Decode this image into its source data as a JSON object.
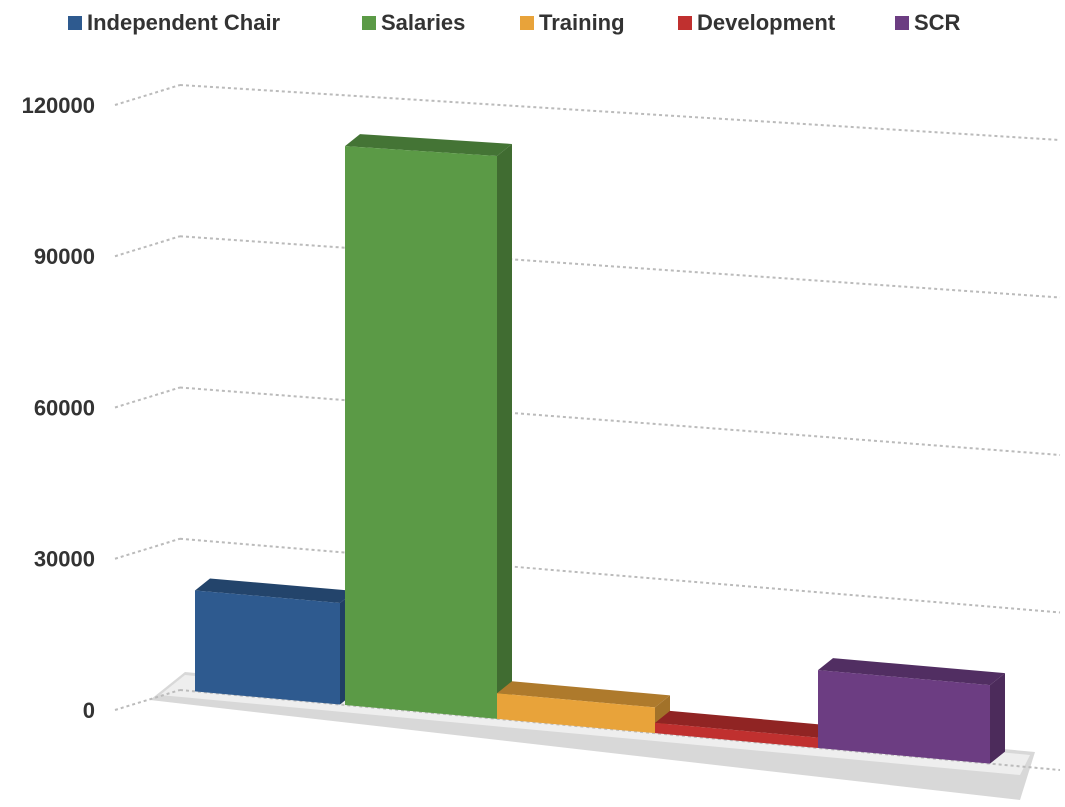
{
  "chart_data": {
    "type": "bar3d",
    "series": [
      {
        "name": "Independent Chair",
        "color": "#2e5a8f",
        "values": [
          20000
        ]
      },
      {
        "name": "Salaries",
        "color": "#5b9a46",
        "values": [
          110000
        ]
      },
      {
        "name": "Training",
        "color": "#e8a33a",
        "values": [
          5000
        ]
      },
      {
        "name": "Development",
        "color": "#c0302f",
        "values": [
          2000
        ]
      },
      {
        "name": "SCR",
        "color": "#6c3d82",
        "values": [
          15000
        ]
      }
    ],
    "ylim": [
      0,
      120000
    ],
    "yticks": [
      0,
      30000,
      60000,
      90000,
      120000
    ],
    "grid": true,
    "legend": "top"
  }
}
